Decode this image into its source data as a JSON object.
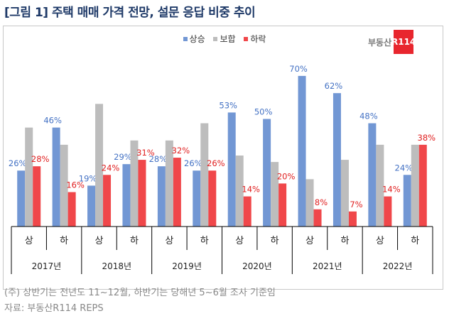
{
  "title": "[그림 1] 주택 매매 가격 전망, 설문 응답 비중 추이",
  "logo": {
    "text": "부동산",
    "badge": "R114"
  },
  "notes": [
    "(주) 상반기는 전년도 11~12월, 하반기는 당해년 5~6월 조사 기준임",
    "자료: 부동산R114 REPS"
  ],
  "chart_data": {
    "type": "bar",
    "title": "[그림 1] 주택 매매 가격 전망, 설문 응답 비중 추이",
    "halves": [
      "상",
      "하",
      "상",
      "하",
      "상",
      "하",
      "상",
      "하",
      "상",
      "하",
      "상",
      "하"
    ],
    "years": [
      "2017년",
      "2018년",
      "2019년",
      "2020년",
      "2021년",
      "2022년"
    ],
    "legend_position": "top",
    "ylim": [
      0,
      75
    ],
    "grid": false,
    "series": [
      {
        "name": "상승",
        "color": "#7297d4",
        "labelColor": "#4472c4",
        "labeled": true,
        "values": [
          26,
          46,
          19,
          29,
          28,
          26,
          53,
          50,
          70,
          62,
          48,
          24
        ]
      },
      {
        "name": "보합",
        "color": "#bdbdbd",
        "labelColor": "#777777",
        "labeled": false,
        "values": [
          46,
          38,
          57,
          40,
          40,
          48,
          33,
          30,
          22,
          31,
          38,
          38
        ]
      },
      {
        "name": "하락",
        "color": "#f0474a",
        "labelColor": "#e02020",
        "labeled": true,
        "values": [
          28,
          16,
          24,
          31,
          32,
          26,
          14,
          20,
          8,
          7,
          14,
          38
        ]
      }
    ]
  }
}
